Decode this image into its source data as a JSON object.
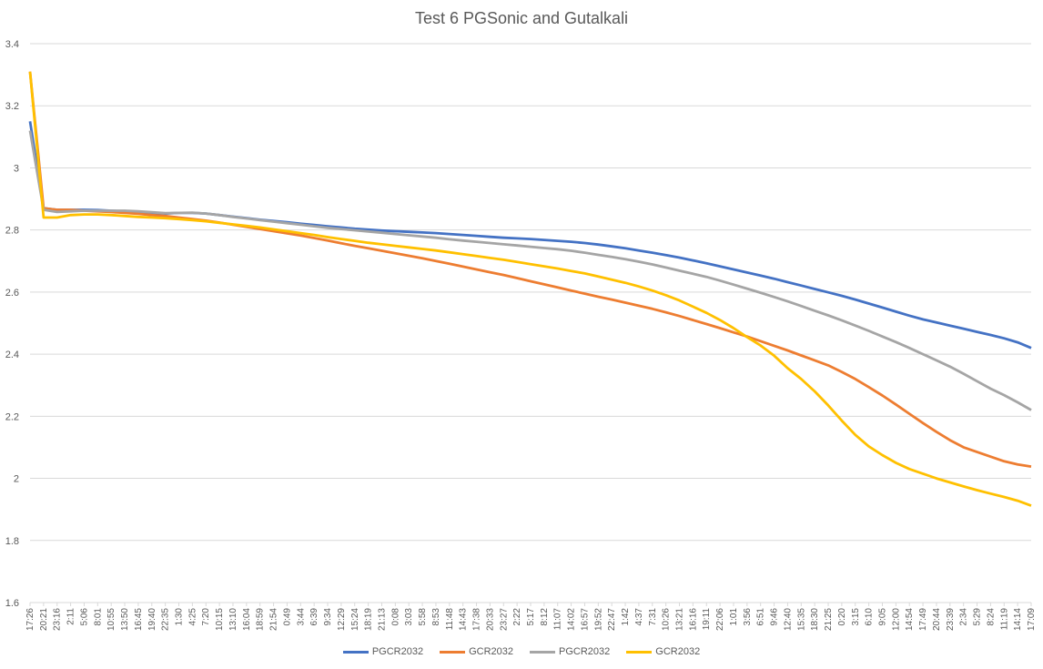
{
  "chart_data": {
    "type": "line",
    "title": "Test 6 PGSonic and Gutalkali",
    "xlabel": "",
    "ylabel": "",
    "ylim": [
      1.6,
      3.4
    ],
    "yticks": [
      "1.6",
      "1.8",
      "2",
      "2.2",
      "2.4",
      "2.6",
      "2.8",
      "3",
      "3.2",
      "3.4"
    ],
    "grid": true,
    "legend_position": "bottom",
    "x_categories": [
      "17:26",
      "20:21",
      "23:16",
      "2:11",
      "5:06",
      "8:01",
      "10:55",
      "13:50",
      "16:45",
      "19:40",
      "22:35",
      "1:30",
      "4:25",
      "7:20",
      "10:15",
      "13:10",
      "16:04",
      "18:59",
      "21:54",
      "0:49",
      "3:44",
      "6:39",
      "9:34",
      "12:29",
      "15:24",
      "18:19",
      "21:13",
      "0:08",
      "3:03",
      "5:58",
      "8:53",
      "11:48",
      "14:43",
      "17:38",
      "20:33",
      "23:27",
      "2:22",
      "5:17",
      "8:12",
      "11:07",
      "14:02",
      "16:57",
      "19:52",
      "22:47",
      "1:42",
      "4:37",
      "7:31",
      "10:26",
      "13:21",
      "16:16",
      "19:11",
      "22:06",
      "1:01",
      "3:56",
      "6:51",
      "9:46",
      "12:40",
      "15:35",
      "18:30",
      "21:25",
      "0:20",
      "3:15",
      "6:10",
      "9:05",
      "12:00",
      "14:54",
      "17:49",
      "20:44",
      "23:39",
      "2:34",
      "5:29",
      "8:24",
      "11:19",
      "14:14",
      "17:09"
    ],
    "series": [
      {
        "name": "PGCR2032",
        "color": "#4472C4",
        "values": [
          3.15,
          2.87,
          2.865,
          2.865,
          2.865,
          2.864,
          2.862,
          2.86,
          2.858,
          2.855,
          2.853,
          2.855,
          2.855,
          2.853,
          2.848,
          2.843,
          2.838,
          2.833,
          2.829,
          2.825,
          2.82,
          2.816,
          2.812,
          2.808,
          2.804,
          2.801,
          2.798,
          2.796,
          2.794,
          2.792,
          2.79,
          2.787,
          2.784,
          2.781,
          2.778,
          2.775,
          2.773,
          2.771,
          2.768,
          2.765,
          2.762,
          2.758,
          2.753,
          2.747,
          2.741,
          2.734,
          2.727,
          2.719,
          2.711,
          2.702,
          2.693,
          2.683,
          2.673,
          2.663,
          2.653,
          2.643,
          2.632,
          2.621,
          2.61,
          2.599,
          2.588,
          2.576,
          2.563,
          2.55,
          2.537,
          2.524,
          2.512,
          2.502,
          2.492,
          2.482,
          2.472,
          2.462,
          2.451,
          2.438,
          2.42
        ]
      },
      {
        "name": "GCR2032",
        "color": "#ED7D31",
        "values": [
          3.31,
          2.87,
          2.865,
          2.865,
          2.862,
          2.86,
          2.858,
          2.855,
          2.852,
          2.848,
          2.845,
          2.84,
          2.835,
          2.83,
          2.824,
          2.817,
          2.81,
          2.803,
          2.796,
          2.789,
          2.782,
          2.774,
          2.766,
          2.757,
          2.749,
          2.741,
          2.733,
          2.725,
          2.717,
          2.709,
          2.7,
          2.691,
          2.682,
          2.673,
          2.664,
          2.655,
          2.645,
          2.635,
          2.625,
          2.615,
          2.605,
          2.595,
          2.585,
          2.576,
          2.566,
          2.556,
          2.546,
          2.535,
          2.523,
          2.51,
          2.497,
          2.484,
          2.47,
          2.457,
          2.442,
          2.427,
          2.412,
          2.396,
          2.38,
          2.364,
          2.343,
          2.32,
          2.294,
          2.267,
          2.238,
          2.208,
          2.178,
          2.15,
          2.123,
          2.1,
          2.085,
          2.07,
          2.055,
          2.045,
          2.038
        ]
      },
      {
        "name": "PGCR2032",
        "color": "#A5A5A5",
        "values": [
          3.12,
          2.865,
          2.858,
          2.86,
          2.862,
          2.862,
          2.862,
          2.862,
          2.86,
          2.857,
          2.854,
          2.855,
          2.856,
          2.853,
          2.848,
          2.842,
          2.837,
          2.832,
          2.827,
          2.822,
          2.817,
          2.812,
          2.807,
          2.803,
          2.799,
          2.795,
          2.791,
          2.787,
          2.783,
          2.779,
          2.775,
          2.77,
          2.766,
          2.762,
          2.758,
          2.754,
          2.75,
          2.746,
          2.742,
          2.738,
          2.733,
          2.727,
          2.72,
          2.713,
          2.706,
          2.698,
          2.689,
          2.679,
          2.669,
          2.659,
          2.649,
          2.637,
          2.624,
          2.611,
          2.598,
          2.584,
          2.57,
          2.555,
          2.54,
          2.525,
          2.509,
          2.492,
          2.475,
          2.457,
          2.439,
          2.42,
          2.4,
          2.38,
          2.36,
          2.337,
          2.313,
          2.289,
          2.268,
          2.245,
          2.22
        ]
      },
      {
        "name": "GCR2032",
        "color": "#FFC000",
        "values": [
          3.31,
          2.84,
          2.84,
          2.848,
          2.85,
          2.85,
          2.848,
          2.845,
          2.842,
          2.84,
          2.838,
          2.835,
          2.832,
          2.828,
          2.823,
          2.818,
          2.813,
          2.808,
          2.802,
          2.796,
          2.79,
          2.784,
          2.777,
          2.771,
          2.765,
          2.759,
          2.754,
          2.749,
          2.744,
          2.739,
          2.734,
          2.728,
          2.722,
          2.716,
          2.71,
          2.704,
          2.697,
          2.69,
          2.683,
          2.676,
          2.668,
          2.66,
          2.65,
          2.64,
          2.63,
          2.618,
          2.605,
          2.59,
          2.573,
          2.553,
          2.533,
          2.51,
          2.484,
          2.455,
          2.428,
          2.395,
          2.355,
          2.32,
          2.28,
          2.235,
          2.186,
          2.14,
          2.103,
          2.075,
          2.05,
          2.03,
          2.015,
          2.0,
          1.987,
          1.974,
          1.962,
          1.951,
          1.94,
          1.928,
          1.912
        ]
      }
    ]
  }
}
